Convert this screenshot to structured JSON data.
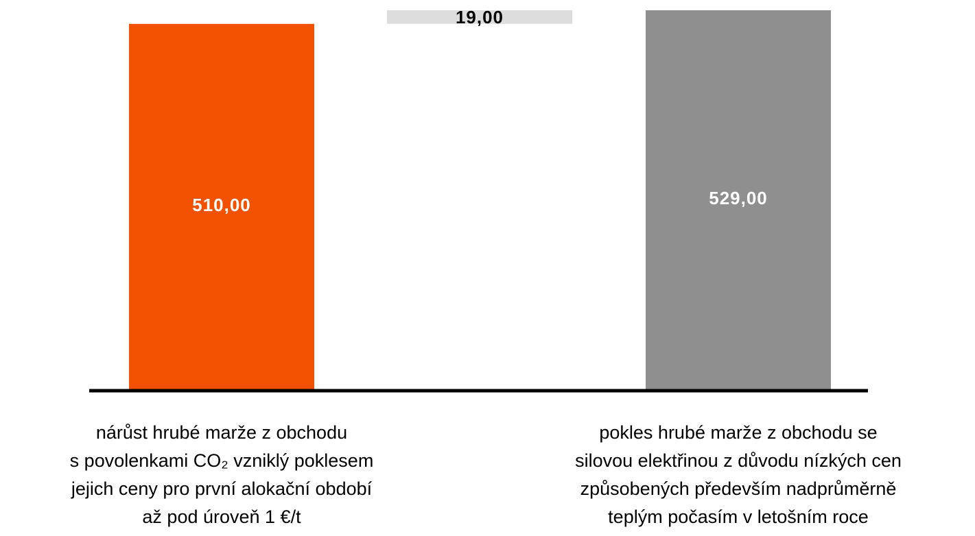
{
  "chart_data": {
    "type": "waterfall",
    "categories": [
      [
        "nárůst hrubé marže z obchodu",
        "s povolenkami CO₂ vzniklý poklesem",
        "jejich ceny pro první alokační období",
        "až pod úroveň 1 €/t"
      ],
      null,
      [
        "pokles hrubé marže z obchodu se",
        "silovou elektřinou z důvodu nízkých cen",
        "způsobených především nadprůměrně",
        "teplým počasím v letošním roce"
      ]
    ],
    "values": [
      510,
      19,
      529
    ],
    "value_labels": [
      "510,00",
      "19,00",
      "529,00"
    ],
    "colors": [
      "#f25100",
      "#dddddd",
      "#8f8f8f"
    ],
    "ylim": [
      0,
      540
    ]
  }
}
